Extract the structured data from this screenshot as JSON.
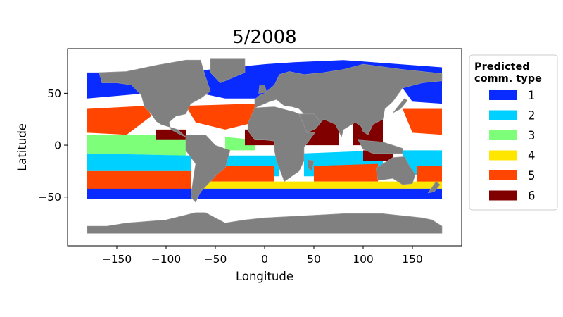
{
  "chart_data": {
    "type": "map",
    "title": "5/2008",
    "xlabel": "Longitude",
    "ylabel": "Latitude",
    "xlim": [
      -200,
      200
    ],
    "ylim": [
      -97,
      93
    ],
    "xticks": [
      -150,
      -100,
      -50,
      0,
      50,
      100,
      150
    ],
    "xtick_labels": [
      "−150",
      "−100",
      "−50",
      "0",
      "50",
      "100",
      "150"
    ],
    "yticks": [
      -50,
      0,
      50
    ],
    "ytick_labels": [
      "−50",
      "0",
      "50"
    ],
    "land_color": "#808080",
    "legend": {
      "title_lines": [
        "Predicted",
        "comm. type"
      ],
      "placement": "right-outside-top",
      "entries": [
        {
          "label": "1",
          "color": "#0a2bff"
        },
        {
          "label": "2",
          "color": "#00d0ff"
        },
        {
          "label": "3",
          "color": "#7dff7a"
        },
        {
          "label": "4",
          "color": "#ffe600"
        },
        {
          "label": "5",
          "color": "#ff4500"
        },
        {
          "label": "6",
          "color": "#800000"
        }
      ]
    },
    "regions": [
      {
        "type": 1,
        "poly": [
          [
            -180,
            70
          ],
          [
            -70,
            70
          ],
          [
            -70,
            52
          ],
          [
            -120,
            50
          ],
          [
            -180,
            45
          ]
        ]
      },
      {
        "type": 1,
        "poly": [
          [
            -65,
            72
          ],
          [
            0,
            78
          ],
          [
            30,
            80
          ],
          [
            80,
            82
          ],
          [
            180,
            75
          ],
          [
            180,
            62
          ],
          [
            100,
            60
          ],
          [
            40,
            55
          ],
          [
            0,
            45
          ],
          [
            -40,
            45
          ],
          [
            -65,
            50
          ]
        ]
      },
      {
        "type": 1,
        "poly": [
          [
            140,
            70
          ],
          [
            180,
            70
          ],
          [
            180,
            40
          ],
          [
            150,
            42
          ],
          [
            140,
            55
          ]
        ]
      },
      {
        "type": 5,
        "poly": [
          [
            -180,
            35
          ],
          [
            -120,
            38
          ],
          [
            -115,
            28
          ],
          [
            -140,
            10
          ],
          [
            -180,
            12
          ]
        ]
      },
      {
        "type": 5,
        "poly": [
          [
            -80,
            38
          ],
          [
            -10,
            40
          ],
          [
            -10,
            22
          ],
          [
            -40,
            15
          ],
          [
            -70,
            22
          ]
        ]
      },
      {
        "type": 5,
        "poly": [
          [
            140,
            35
          ],
          [
            180,
            35
          ],
          [
            180,
            10
          ],
          [
            150,
            12
          ]
        ]
      },
      {
        "type": 3,
        "poly": [
          [
            -180,
            10
          ],
          [
            -80,
            10
          ],
          [
            -80,
            -10
          ],
          [
            -180,
            -8
          ]
        ]
      },
      {
        "type": 3,
        "poly": [
          [
            -40,
            8
          ],
          [
            -10,
            5
          ],
          [
            -10,
            -5
          ],
          [
            -40,
            -5
          ]
        ]
      },
      {
        "type": 2,
        "poly": [
          [
            -180,
            -8
          ],
          [
            -75,
            -10
          ],
          [
            -75,
            -25
          ],
          [
            -180,
            -25
          ]
        ]
      },
      {
        "type": 2,
        "poly": [
          [
            -40,
            -10
          ],
          [
            15,
            -10
          ],
          [
            15,
            -30
          ],
          [
            -40,
            -30
          ]
        ]
      },
      {
        "type": 2,
        "poly": [
          [
            40,
            -8
          ],
          [
            120,
            -5
          ],
          [
            120,
            -30
          ],
          [
            40,
            -30
          ]
        ]
      },
      {
        "type": 2,
        "poly": [
          [
            140,
            -5
          ],
          [
            180,
            -5
          ],
          [
            180,
            -30
          ],
          [
            140,
            -28
          ]
        ]
      },
      {
        "type": 5,
        "poly": [
          [
            -180,
            -25
          ],
          [
            -75,
            -25
          ],
          [
            -75,
            -50
          ],
          [
            -180,
            -50
          ]
        ]
      },
      {
        "type": 5,
        "poly": [
          [
            -55,
            -20
          ],
          [
            10,
            -20
          ],
          [
            10,
            -35
          ],
          [
            -55,
            -35
          ]
        ]
      },
      {
        "type": 5,
        "poly": [
          [
            50,
            -20
          ],
          [
            115,
            -18
          ],
          [
            115,
            -35
          ],
          [
            50,
            -35
          ]
        ]
      },
      {
        "type": 5,
        "poly": [
          [
            155,
            -20
          ],
          [
            180,
            -20
          ],
          [
            180,
            -40
          ],
          [
            155,
            -40
          ]
        ]
      },
      {
        "type": 4,
        "poly": [
          [
            -70,
            -35
          ],
          [
            180,
            -35
          ],
          [
            180,
            -42
          ],
          [
            -70,
            -42
          ]
        ]
      },
      {
        "type": 1,
        "poly": [
          [
            -180,
            -42
          ],
          [
            180,
            -42
          ],
          [
            180,
            -52
          ],
          [
            -180,
            -52
          ]
        ]
      },
      {
        "type": 6,
        "poly": [
          [
            -110,
            15
          ],
          [
            -80,
            15
          ],
          [
            -80,
            5
          ],
          [
            -110,
            5
          ]
        ]
      },
      {
        "type": 6,
        "poly": [
          [
            -20,
            15
          ],
          [
            10,
            15
          ],
          [
            10,
            0
          ],
          [
            -20,
            0
          ]
        ]
      },
      {
        "type": 6,
        "poly": [
          [
            40,
            25
          ],
          [
            75,
            25
          ],
          [
            75,
            0
          ],
          [
            40,
            0
          ]
        ]
      },
      {
        "type": 6,
        "poly": [
          [
            90,
            25
          ],
          [
            120,
            25
          ],
          [
            120,
            0
          ],
          [
            90,
            0
          ]
        ]
      },
      {
        "type": 6,
        "poly": [
          [
            100,
            -5
          ],
          [
            130,
            -5
          ],
          [
            130,
            -15
          ],
          [
            100,
            -15
          ]
        ]
      }
    ],
    "land": [
      {
        "name": "north-america",
        "poly": [
          [
            -168,
            70
          ],
          [
            -140,
            71
          ],
          [
            -110,
            77
          ],
          [
            -80,
            82
          ],
          [
            -65,
            82
          ],
          [
            -60,
            66
          ],
          [
            -55,
            52
          ],
          [
            -65,
            45
          ],
          [
            -75,
            40
          ],
          [
            -80,
            30
          ],
          [
            -90,
            28
          ],
          [
            -97,
            22
          ],
          [
            -95,
            15
          ],
          [
            -85,
            10
          ],
          [
            -80,
            8
          ],
          [
            -88,
            15
          ],
          [
            -105,
            20
          ],
          [
            -110,
            23
          ],
          [
            -115,
            30
          ],
          [
            -122,
            37
          ],
          [
            -125,
            48
          ],
          [
            -135,
            58
          ],
          [
            -150,
            60
          ],
          [
            -165,
            60
          ]
        ]
      },
      {
        "name": "greenland",
        "poly": [
          [
            -55,
            83
          ],
          [
            -20,
            83
          ],
          [
            -20,
            70
          ],
          [
            -45,
            60
          ],
          [
            -55,
            70
          ]
        ]
      },
      {
        "name": "south-america",
        "poly": [
          [
            -80,
            10
          ],
          [
            -60,
            10
          ],
          [
            -50,
            0
          ],
          [
            -35,
            -5
          ],
          [
            -40,
            -22
          ],
          [
            -48,
            -28
          ],
          [
            -58,
            -38
          ],
          [
            -65,
            -45
          ],
          [
            -70,
            -55
          ],
          [
            -75,
            -50
          ],
          [
            -72,
            -30
          ],
          [
            -70,
            -18
          ],
          [
            -80,
            -5
          ]
        ]
      },
      {
        "name": "europe-asia",
        "poly": [
          [
            -10,
            36
          ],
          [
            -10,
            44
          ],
          [
            -5,
            48
          ],
          [
            0,
            50
          ],
          [
            5,
            54
          ],
          [
            10,
            58
          ],
          [
            15,
            68
          ],
          [
            25,
            71
          ],
          [
            40,
            68
          ],
          [
            60,
            70
          ],
          [
            80,
            73
          ],
          [
            100,
            78
          ],
          [
            140,
            73
          ],
          [
            180,
            69
          ],
          [
            180,
            62
          ],
          [
            160,
            60
          ],
          [
            140,
            55
          ],
          [
            130,
            42
          ],
          [
            122,
            35
          ],
          [
            120,
            25
          ],
          [
            110,
            20
          ],
          [
            105,
            10
          ],
          [
            100,
            13
          ],
          [
            98,
            18
          ],
          [
            92,
            22
          ],
          [
            80,
            15
          ],
          [
            78,
            8
          ],
          [
            72,
            20
          ],
          [
            60,
            25
          ],
          [
            57,
            22
          ],
          [
            50,
            30
          ],
          [
            40,
            30
          ],
          [
            35,
            35
          ],
          [
            28,
            37
          ],
          [
            20,
            38
          ],
          [
            12,
            44
          ],
          [
            5,
            42
          ]
        ]
      },
      {
        "name": "africa",
        "poly": [
          [
            -17,
            21
          ],
          [
            -10,
            36
          ],
          [
            10,
            37
          ],
          [
            30,
            32
          ],
          [
            35,
            30
          ],
          [
            43,
            12
          ],
          [
            51,
            12
          ],
          [
            40,
            -2
          ],
          [
            40,
            -15
          ],
          [
            35,
            -25
          ],
          [
            20,
            -35
          ],
          [
            18,
            -30
          ],
          [
            12,
            -15
          ],
          [
            10,
            -5
          ],
          [
            10,
            4
          ],
          [
            0,
            5
          ],
          [
            -10,
            5
          ],
          [
            -17,
            14
          ]
        ]
      },
      {
        "name": "arabia",
        "poly": [
          [
            35,
            30
          ],
          [
            50,
            30
          ],
          [
            57,
            22
          ],
          [
            52,
            16
          ],
          [
            43,
            12
          ]
        ]
      },
      {
        "name": "madagascar",
        "poly": [
          [
            44,
            -14
          ],
          [
            50,
            -15
          ],
          [
            48,
            -25
          ],
          [
            44,
            -22
          ]
        ]
      },
      {
        "name": "australia",
        "poly": [
          [
            113,
            -22
          ],
          [
            130,
            -12
          ],
          [
            142,
            -11
          ],
          [
            147,
            -20
          ],
          [
            153,
            -28
          ],
          [
            150,
            -37
          ],
          [
            140,
            -38
          ],
          [
            130,
            -32
          ],
          [
            115,
            -34
          ]
        ]
      },
      {
        "name": "indonesia",
        "poly": [
          [
            95,
            5
          ],
          [
            120,
            3
          ],
          [
            140,
            -3
          ],
          [
            140,
            -8
          ],
          [
            110,
            -8
          ],
          [
            100,
            -4
          ]
        ]
      },
      {
        "name": "new-zealand",
        "poly": [
          [
            166,
            -46
          ],
          [
            174,
            -35
          ],
          [
            178,
            -38
          ],
          [
            172,
            -45
          ]
        ]
      },
      {
        "name": "japan",
        "poly": [
          [
            130,
            31
          ],
          [
            142,
            45
          ],
          [
            145,
            43
          ],
          [
            138,
            35
          ]
        ]
      },
      {
        "name": "uk",
        "poly": [
          [
            -6,
            50
          ],
          [
            2,
            51
          ],
          [
            0,
            58
          ],
          [
            -5,
            58
          ]
        ]
      },
      {
        "name": "antarctica",
        "poly": [
          [
            -180,
            -85
          ],
          [
            -180,
            -78
          ],
          [
            -160,
            -78
          ],
          [
            -140,
            -75
          ],
          [
            -100,
            -72
          ],
          [
            -70,
            -65
          ],
          [
            -60,
            -65
          ],
          [
            -40,
            -75
          ],
          [
            -20,
            -72
          ],
          [
            0,
            -70
          ],
          [
            40,
            -68
          ],
          [
            80,
            -66
          ],
          [
            120,
            -66
          ],
          [
            160,
            -70
          ],
          [
            170,
            -72
          ],
          [
            180,
            -78
          ],
          [
            180,
            -85
          ]
        ]
      }
    ]
  }
}
